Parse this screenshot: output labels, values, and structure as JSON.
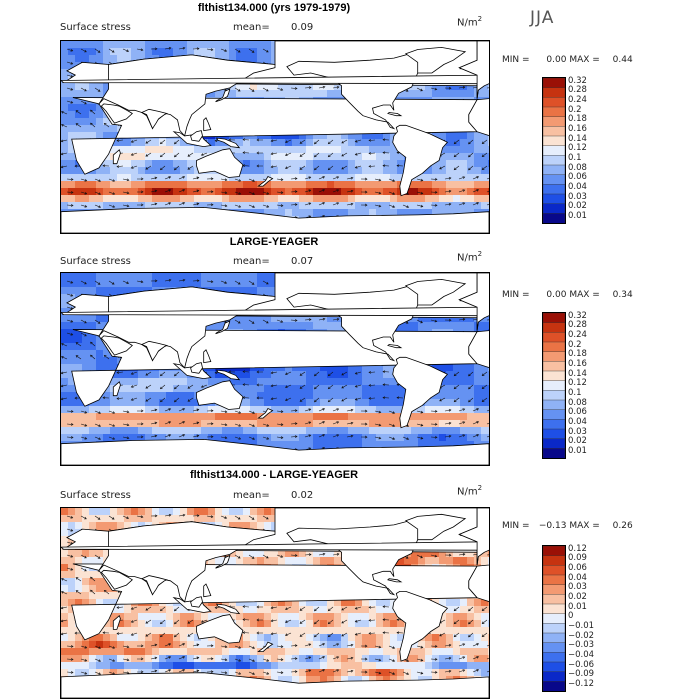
{
  "season": "JJA",
  "colors": {
    "scale11": [
      "#08088a",
      "#0a28c8",
      "#1e4fe6",
      "#3d70ee",
      "#6592f2",
      "#8fb2f6",
      "#bcd2fa",
      "#e6eefc",
      "#fbe3d3",
      "#f8c0a2",
      "#f39a72",
      "#ea7345",
      "#de5128",
      "#c63310",
      "#9a1006"
    ],
    "land": "#ffffff"
  },
  "chart_data": [
    {
      "type": "heatmap",
      "title": "flthist134.000 (yrs 1979-1979)",
      "label": "Surface stress",
      "mean_label": "mean=",
      "mean": "0.09",
      "units": "N/m",
      "units_exp": "2",
      "min_label": "MIN =",
      "min": "0.00",
      "max_label": "MAX =",
      "max": "0.44",
      "levels": [
        "0.32",
        "0.28",
        "0.24",
        "0.2",
        "0.18",
        "0.16",
        "0.14",
        "0.12",
        "0.1",
        "0.08",
        "0.06",
        "0.04",
        "0.03",
        "0.02",
        "0.01"
      ],
      "field": "full"
    },
    {
      "type": "heatmap",
      "title": "LARGE-YEAGER",
      "label": "Surface stress",
      "mean_label": "mean=",
      "mean": "0.07",
      "units": "N/m",
      "units_exp": "2",
      "min_label": "MIN =",
      "min": "0.00",
      "max_label": "MAX =",
      "max": "0.34",
      "levels": [
        "0.32",
        "0.28",
        "0.24",
        "0.2",
        "0.18",
        "0.16",
        "0.14",
        "0.12",
        "0.1",
        "0.08",
        "0.06",
        "0.04",
        "0.03",
        "0.02",
        "0.01"
      ],
      "field": "obs"
    },
    {
      "type": "heatmap",
      "title": "flthist134.000 - LARGE-YEAGER",
      "label": "Surface stress",
      "mean_label": "mean=",
      "mean": "0.02",
      "units": "N/m",
      "units_exp": "2",
      "min_label": "MIN =",
      "min": "−0.13",
      "max_label": "MAX =",
      "max": "0.26",
      "levels": [
        "0.12",
        "0.09",
        "0.06",
        "0.04",
        "0.03",
        "0.02",
        "0.01",
        "0",
        "−0.01",
        "−0.02",
        "−0.03",
        "−0.04",
        "−0.06",
        "−0.09",
        "−0.12"
      ],
      "field": "diff"
    }
  ]
}
